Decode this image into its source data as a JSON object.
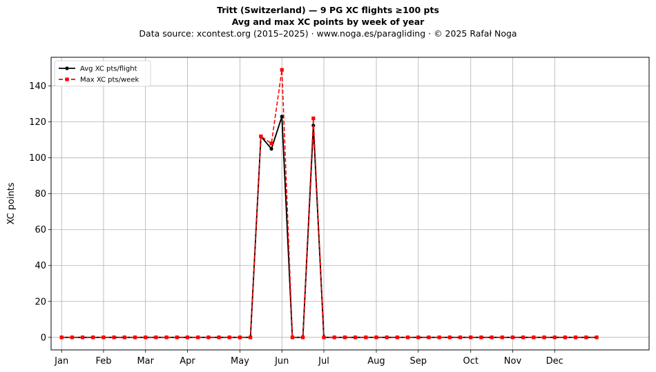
{
  "figure": {
    "title_line1": "Tritt (Switzerland)  —  9 PG XC flights ≥100 pts",
    "title_line2": "Avg and max XC points by week of year",
    "subtitle": "Data source: xcontest.org (2015–2025)  ·  www.noga.es/paragliding  ·  © 2025 Rafał Noga"
  },
  "chart_data": {
    "type": "line",
    "title": "Tritt (Switzerland)  —  9 PG XC flights ≥100 pts",
    "subtitle": "Avg and max XC points by week of year",
    "xlabel": "",
    "ylabel": "XC points",
    "x": [
      1,
      2,
      3,
      4,
      5,
      6,
      7,
      8,
      9,
      10,
      11,
      12,
      13,
      14,
      15,
      16,
      17,
      18,
      19,
      20,
      21,
      22,
      23,
      24,
      25,
      26,
      27,
      28,
      29,
      30,
      31,
      32,
      33,
      34,
      35,
      36,
      37,
      38,
      39,
      40,
      41,
      42,
      43,
      44,
      45,
      46,
      47,
      48,
      49,
      50,
      51,
      52
    ],
    "xlim": [
      0,
      57
    ],
    "ylim": [
      -7,
      156
    ],
    "yticks": [
      0,
      20,
      40,
      60,
      80,
      100,
      120,
      140
    ],
    "xticks": [
      {
        "label": "Jan",
        "week": 1
      },
      {
        "label": "Feb",
        "week": 5
      },
      {
        "label": "Mar",
        "week": 9
      },
      {
        "label": "Apr",
        "week": 13
      },
      {
        "label": "May",
        "week": 18
      },
      {
        "label": "Jun",
        "week": 22
      },
      {
        "label": "Jul",
        "week": 26
      },
      {
        "label": "Aug",
        "week": 31
      },
      {
        "label": "Sep",
        "week": 35
      },
      {
        "label": "Oct",
        "week": 40
      },
      {
        "label": "Nov",
        "week": 44
      },
      {
        "label": "Dec",
        "week": 48
      }
    ],
    "grid": true,
    "legend_position": "top-left",
    "series": [
      {
        "name": "Avg XC pts/flight",
        "color": "#000000",
        "style": "solid",
        "marker": "circle",
        "values": [
          0,
          0,
          0,
          0,
          0,
          0,
          0,
          0,
          0,
          0,
          0,
          0,
          0,
          0,
          0,
          0,
          0,
          0,
          0,
          112,
          105,
          123,
          0,
          0,
          118,
          0,
          0,
          0,
          0,
          0,
          0,
          0,
          0,
          0,
          0,
          0,
          0,
          0,
          0,
          0,
          0,
          0,
          0,
          0,
          0,
          0,
          0,
          0,
          0,
          0,
          0,
          0
        ]
      },
      {
        "name": "Max XC pts/week",
        "color": "#ff0000",
        "style": "dashed",
        "marker": "square",
        "values": [
          0,
          0,
          0,
          0,
          0,
          0,
          0,
          0,
          0,
          0,
          0,
          0,
          0,
          0,
          0,
          0,
          0,
          0,
          0,
          112,
          108,
          149,
          0,
          0,
          122,
          0,
          0,
          0,
          0,
          0,
          0,
          0,
          0,
          0,
          0,
          0,
          0,
          0,
          0,
          0,
          0,
          0,
          0,
          0,
          0,
          0,
          0,
          0,
          0,
          0,
          0,
          0
        ]
      }
    ]
  }
}
